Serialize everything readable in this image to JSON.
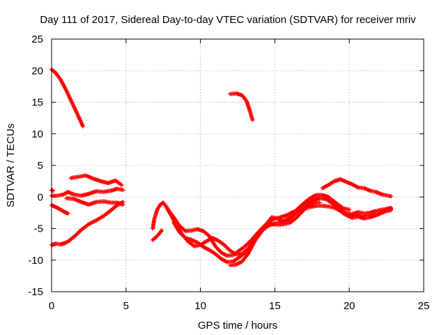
{
  "chart_data": {
    "type": "scatter",
    "title": "Day 111 of 2017, Sidereal Day-to-day VTEC variation (SDTVAR) for receiver mriv",
    "xlabel": "GPS time / hours",
    "ylabel": "SDTVAR / TECUs",
    "xlim": [
      0,
      25
    ],
    "ylim": [
      -15,
      25
    ],
    "xticks": [
      "0",
      "5",
      "10",
      "15",
      "20",
      "25"
    ],
    "yticks": [
      "-15",
      "-10",
      "-5",
      "0",
      "5",
      "10",
      "15",
      "20",
      "25"
    ],
    "grid": true,
    "marker": "+",
    "color": "#ff0000",
    "series": [
      {
        "name": "s1",
        "points": [
          [
            0.0,
            20.2
          ],
          [
            0.3,
            19.6
          ],
          [
            0.6,
            18.6
          ],
          [
            0.9,
            17.3
          ],
          [
            1.2,
            15.8
          ],
          [
            1.5,
            14.3
          ],
          [
            1.8,
            12.8
          ],
          [
            2.1,
            11.2
          ]
        ]
      },
      {
        "name": "s2",
        "points": [
          [
            0.0,
            -7.6
          ],
          [
            0.3,
            -7.4
          ],
          [
            0.6,
            -7.5
          ],
          [
            0.9,
            -7.3
          ],
          [
            1.2,
            -6.9
          ],
          [
            1.6,
            -6.1
          ],
          [
            2.0,
            -5.2
          ],
          [
            2.5,
            -4.3
          ],
          [
            3.0,
            -3.7
          ],
          [
            3.5,
            -3.0
          ],
          [
            4.0,
            -2.1
          ],
          [
            4.4,
            -1.3
          ],
          [
            4.8,
            -0.8
          ]
        ]
      },
      {
        "name": "s3",
        "points": [
          [
            0.0,
            -1.3
          ],
          [
            0.3,
            -1.6
          ],
          [
            0.6,
            -2.0
          ],
          [
            0.9,
            -2.4
          ],
          [
            1.1,
            -2.6
          ]
        ]
      },
      {
        "name": "s4",
        "points": [
          [
            0.0,
            0.2
          ],
          [
            0.4,
            0.2
          ],
          [
            0.8,
            0.4
          ],
          [
            1.1,
            0.8
          ],
          [
            1.5,
            0.4
          ],
          [
            2.0,
            0.2
          ],
          [
            2.5,
            0.5
          ],
          [
            3.0,
            0.9
          ],
          [
            3.5,
            0.8
          ],
          [
            4.0,
            1.0
          ],
          [
            4.4,
            1.3
          ],
          [
            4.8,
            1.1
          ]
        ]
      },
      {
        "name": "s5",
        "points": [
          [
            1.0,
            -0.2
          ],
          [
            1.5,
            -0.3
          ],
          [
            2.0,
            -0.8
          ],
          [
            2.5,
            -1.2
          ],
          [
            3.0,
            -0.8
          ],
          [
            3.5,
            -0.7
          ],
          [
            4.0,
            -0.9
          ],
          [
            4.4,
            -0.9
          ],
          [
            4.8,
            -1.2
          ]
        ]
      },
      {
        "name": "s6",
        "points": [
          [
            1.3,
            3.0
          ],
          [
            1.8,
            3.2
          ],
          [
            2.3,
            3.4
          ],
          [
            2.8,
            2.9
          ],
          [
            3.3,
            2.5
          ],
          [
            3.8,
            2.2
          ],
          [
            4.3,
            2.6
          ],
          [
            4.7,
            1.9
          ]
        ]
      },
      {
        "name": "s7",
        "points": [
          [
            0.0,
            1.1
          ],
          [
            0.1,
            1.0
          ]
        ]
      },
      {
        "name": "s8",
        "points": [
          [
            6.8,
            -6.8
          ],
          [
            7.0,
            -6.4
          ],
          [
            7.2,
            -5.9
          ],
          [
            7.4,
            -5.3
          ]
        ]
      },
      {
        "name": "s9",
        "points": [
          [
            6.8,
            -5.0
          ],
          [
            6.9,
            -3.5
          ],
          [
            7.1,
            -2.0
          ],
          [
            7.3,
            -1.2
          ],
          [
            7.5,
            -0.9
          ],
          [
            7.7,
            -1.5
          ],
          [
            8.0,
            -2.8
          ],
          [
            8.4,
            -4.5
          ],
          [
            8.8,
            -6.0
          ],
          [
            9.2,
            -7.1
          ],
          [
            9.6,
            -7.8
          ],
          [
            10.0,
            -7.6
          ],
          [
            10.4,
            -7.0
          ],
          [
            10.8,
            -6.5
          ],
          [
            11.2,
            -6.9
          ],
          [
            11.6,
            -7.6
          ],
          [
            12.0,
            -8.5
          ],
          [
            12.4,
            -9.1
          ],
          [
            12.8,
            -9.0
          ],
          [
            13.2,
            -8.2
          ],
          [
            13.6,
            -7.0
          ],
          [
            14.0,
            -5.8
          ],
          [
            14.4,
            -4.4
          ],
          [
            14.8,
            -3.2
          ],
          [
            15.2,
            -3.4
          ],
          [
            15.6,
            -3.9
          ],
          [
            16.0,
            -3.5
          ],
          [
            16.4,
            -2.6
          ],
          [
            16.8,
            -1.8
          ],
          [
            17.2,
            -1.1
          ],
          [
            17.6,
            -0.5
          ],
          [
            18.0,
            -0.2
          ],
          [
            18.4,
            -0.3
          ],
          [
            18.8,
            -0.9
          ],
          [
            19.2,
            -1.7
          ],
          [
            19.6,
            -2.6
          ],
          [
            20.0,
            -3.1
          ],
          [
            20.4,
            -2.8
          ],
          [
            20.8,
            -3.1
          ],
          [
            21.2,
            -2.9
          ],
          [
            21.6,
            -2.8
          ],
          [
            22.0,
            -2.6
          ],
          [
            22.4,
            -2.0
          ],
          [
            22.8,
            -1.7
          ]
        ]
      },
      {
        "name": "s10",
        "points": [
          [
            7.8,
            -1.9
          ],
          [
            8.2,
            -3.2
          ],
          [
            8.6,
            -4.6
          ],
          [
            9.0,
            -5.4
          ],
          [
            9.4,
            -5.3
          ],
          [
            9.8,
            -5.1
          ],
          [
            10.2,
            -5.4
          ],
          [
            10.6,
            -6.2
          ],
          [
            11.0,
            -7.8
          ],
          [
            11.4,
            -8.8
          ],
          [
            11.8,
            -9.3
          ],
          [
            12.2,
            -9.2
          ],
          [
            12.6,
            -8.5
          ],
          [
            13.0,
            -7.8
          ],
          [
            13.4,
            -6.9
          ],
          [
            13.8,
            -5.8
          ],
          [
            14.2,
            -4.8
          ],
          [
            14.6,
            -3.9
          ],
          [
            15.0,
            -3.4
          ],
          [
            15.4,
            -3.2
          ],
          [
            15.8,
            -2.9
          ],
          [
            16.2,
            -2.4
          ],
          [
            16.6,
            -2.0
          ],
          [
            17.0,
            -1.8
          ],
          [
            17.4,
            -1.6
          ],
          [
            17.8,
            -1.4
          ],
          [
            18.2,
            -1.4
          ],
          [
            18.6,
            -1.5
          ],
          [
            19.0,
            -1.7
          ],
          [
            19.4,
            -2.2
          ],
          [
            19.8,
            -2.6
          ],
          [
            20.2,
            -2.7
          ],
          [
            20.6,
            -2.4
          ],
          [
            21.0,
            -2.6
          ],
          [
            21.4,
            -2.5
          ],
          [
            21.8,
            -2.2
          ],
          [
            22.2,
            -2.0
          ],
          [
            22.8,
            -1.9
          ]
        ]
      },
      {
        "name": "s11",
        "points": [
          [
            8.2,
            -4.0
          ],
          [
            8.6,
            -5.6
          ],
          [
            9.0,
            -6.5
          ],
          [
            9.4,
            -6.8
          ],
          [
            9.8,
            -7.2
          ],
          [
            10.2,
            -7.9
          ],
          [
            10.6,
            -8.4
          ],
          [
            11.0,
            -9.0
          ],
          [
            11.4,
            -9.8
          ],
          [
            11.8,
            -10.3
          ],
          [
            12.2,
            -10.2
          ],
          [
            12.6,
            -9.6
          ],
          [
            13.0,
            -8.8
          ],
          [
            13.4,
            -7.8
          ],
          [
            13.8,
            -6.4
          ],
          [
            14.2,
            -5.2
          ],
          [
            14.6,
            -4.5
          ],
          [
            15.0,
            -4.2
          ],
          [
            15.4,
            -4.0
          ],
          [
            15.8,
            -3.6
          ],
          [
            16.2,
            -2.9
          ],
          [
            16.6,
            -2.0
          ],
          [
            17.0,
            -1.0
          ],
          [
            17.4,
            -0.2
          ],
          [
            17.8,
            0.3
          ],
          [
            18.2,
            0.3
          ],
          [
            18.6,
            0.0
          ],
          [
            19.0,
            -0.8
          ],
          [
            19.4,
            -1.8
          ],
          [
            19.8,
            -2.8
          ],
          [
            20.2,
            -3.3
          ],
          [
            20.6,
            -3.1
          ],
          [
            21.0,
            -3.4
          ],
          [
            21.4,
            -3.2
          ],
          [
            21.8,
            -2.9
          ],
          [
            22.4,
            -2.3
          ],
          [
            22.8,
            -2.1
          ]
        ]
      },
      {
        "name": "s12",
        "points": [
          [
            12.0,
            -10.8
          ],
          [
            12.4,
            -10.7
          ],
          [
            12.8,
            -10.2
          ],
          [
            13.2,
            -9.0
          ],
          [
            13.6,
            -7.2
          ],
          [
            14.0,
            -5.6
          ],
          [
            14.4,
            -4.6
          ],
          [
            14.8,
            -4.3
          ],
          [
            15.2,
            -4.4
          ],
          [
            15.6,
            -4.3
          ],
          [
            16.0,
            -4.1
          ],
          [
            16.4,
            -3.4
          ],
          [
            16.8,
            -2.4
          ],
          [
            17.2,
            -1.5
          ],
          [
            17.6,
            -1.0
          ],
          [
            18.0,
            -0.9
          ]
        ]
      },
      {
        "name": "s13",
        "points": [
          [
            16.4,
            -2.2
          ],
          [
            16.8,
            -1.3
          ],
          [
            17.2,
            -0.5
          ],
          [
            17.6,
            0.1
          ],
          [
            18.0,
            0.3
          ],
          [
            18.4,
            0.1
          ],
          [
            18.8,
            -0.4
          ],
          [
            19.2,
            -1.1
          ],
          [
            19.6,
            -1.8
          ],
          [
            20.0,
            -2.0
          ]
        ]
      },
      {
        "name": "s14",
        "points": [
          [
            12.0,
            16.3
          ],
          [
            12.4,
            16.4
          ],
          [
            12.8,
            16.1
          ],
          [
            13.1,
            15.2
          ],
          [
            13.3,
            13.8
          ],
          [
            13.5,
            12.2
          ]
        ]
      },
      {
        "name": "s15",
        "points": [
          [
            18.2,
            1.4
          ],
          [
            18.6,
            1.9
          ],
          [
            19.0,
            2.5
          ],
          [
            19.4,
            2.8
          ],
          [
            19.8,
            2.4
          ],
          [
            20.2,
            2.0
          ],
          [
            20.6,
            1.5
          ],
          [
            21.0,
            1.4
          ],
          [
            21.4,
            1.0
          ],
          [
            21.8,
            0.8
          ],
          [
            22.2,
            0.4
          ],
          [
            22.6,
            0.2
          ],
          [
            22.8,
            0.1
          ]
        ]
      }
    ]
  }
}
